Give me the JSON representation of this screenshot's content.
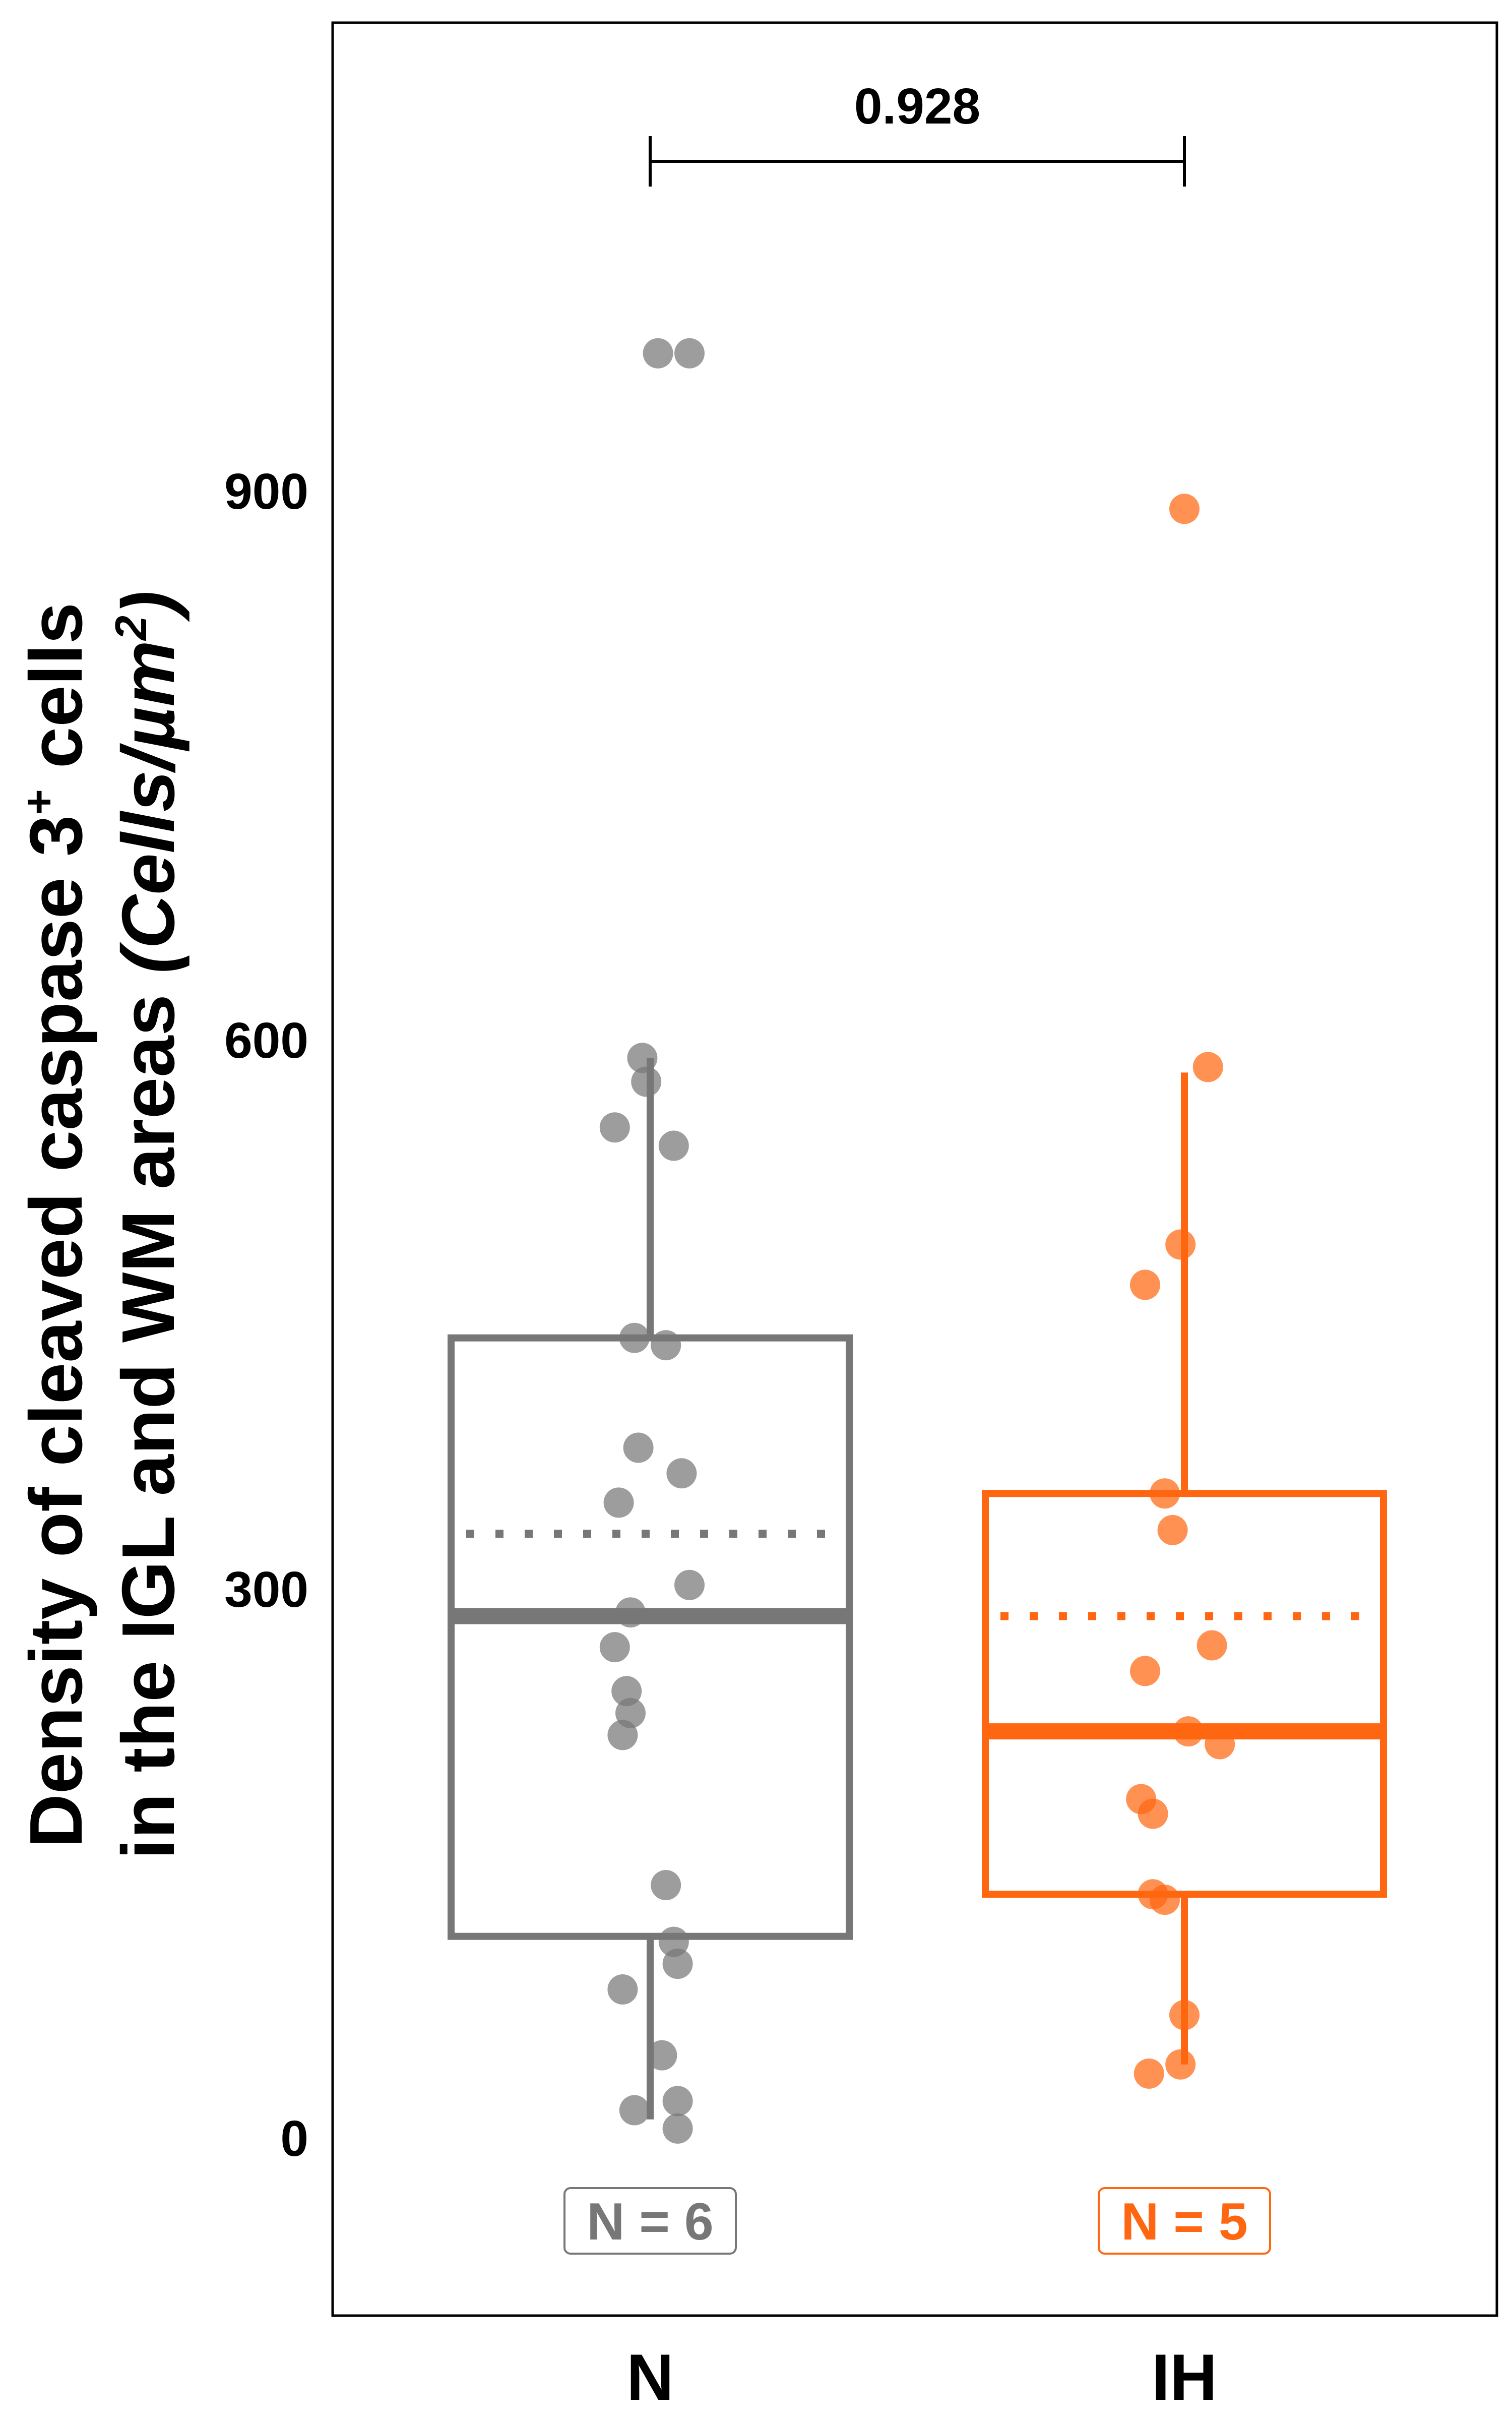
{
  "chart_data": {
    "type": "box",
    "ylabel_line1": "Density of cleaved caspase 3",
    "ylabel_sup": "+",
    "ylabel_line1_end": " cells",
    "ylabel_line2": "in the IGL and WM areas ",
    "ylabel_unit": "(Cells/µm",
    "ylabel_unit_sup": "2",
    "ylabel_unit_end": ")",
    "ylim": [
      -95,
      1150
    ],
    "yticks": [
      0,
      300,
      600,
      900
    ],
    "ytick_labels": [
      "0",
      "300",
      "600",
      "900"
    ],
    "categories": [
      "N",
      "IH"
    ],
    "pvalue": "0.928",
    "groups": [
      {
        "name": "N",
        "color": "#777777",
        "n_label": "N = 6",
        "box": {
          "q1": 110,
          "median": 285,
          "mean": 330,
          "q3": 437,
          "whisker_low": 10,
          "whisker_high": 590
        },
        "points": [
          [
            -0.02,
            590
          ],
          [
            -0.01,
            577
          ],
          [
            -0.09,
            552
          ],
          [
            0.06,
            542
          ],
          [
            -0.04,
            437
          ],
          [
            0.04,
            433
          ],
          [
            -0.03,
            377
          ],
          [
            0.08,
            363
          ],
          [
            -0.08,
            347
          ],
          [
            0.1,
            302
          ],
          [
            -0.05,
            287
          ],
          [
            -0.09,
            268
          ],
          [
            -0.06,
            244
          ],
          [
            -0.05,
            232
          ],
          [
            -0.07,
            220
          ],
          [
            0.04,
            138
          ],
          [
            0.06,
            107
          ],
          [
            0.07,
            95
          ],
          [
            -0.07,
            81
          ],
          [
            0.03,
            45
          ],
          [
            -0.04,
            15
          ],
          [
            0.07,
            20
          ],
          [
            0.07,
            5
          ],
          [
            0.02,
            975
          ],
          [
            0.1,
            975
          ]
        ]
      },
      {
        "name": "IH",
        "color": "#ff6611",
        "n_label": "N = 5",
        "box": {
          "q1": 133,
          "median": 222,
          "mean": 285,
          "q3": 352,
          "whisker_low": 40,
          "whisker_high": 582
        },
        "points": [
          [
            0.06,
            585
          ],
          [
            -0.01,
            488
          ],
          [
            -0.1,
            466
          ],
          [
            -0.05,
            352
          ],
          [
            -0.03,
            332
          ],
          [
            0.07,
            269
          ],
          [
            -0.1,
            255
          ],
          [
            0.01,
            222
          ],
          [
            0.09,
            215
          ],
          [
            -0.11,
            185
          ],
          [
            -0.08,
            177
          ],
          [
            -0.08,
            133
          ],
          [
            -0.05,
            130
          ],
          [
            0.0,
            67
          ],
          [
            -0.01,
            40
          ],
          [
            -0.09,
            35
          ],
          [
            0.0,
            890
          ]
        ]
      }
    ]
  }
}
